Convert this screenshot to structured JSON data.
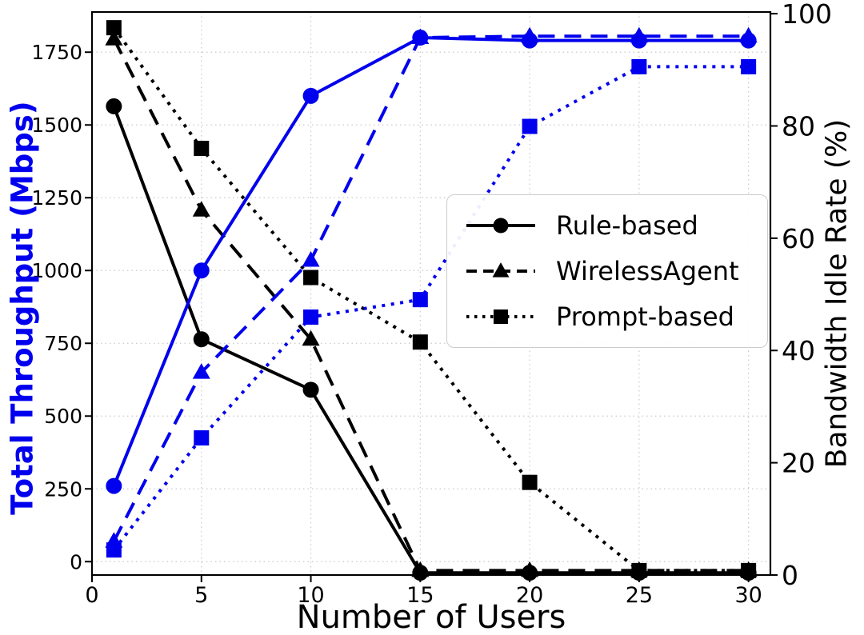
{
  "chart_data": {
    "type": "line",
    "title": "",
    "xlabel": "Number of Users",
    "ylabel_left": "Total Throughput (Mbps)",
    "ylabel_right": "Bandwidth Idle Rate (%)",
    "x": [
      1,
      5,
      10,
      15,
      20,
      25,
      30
    ],
    "x_ticks": [
      0,
      5,
      10,
      15,
      20,
      25,
      30
    ],
    "y_left_ticks": [
      0,
      250,
      500,
      750,
      1000,
      1250,
      1500,
      1750
    ],
    "y_right_ticks": [
      0,
      20,
      40,
      60,
      80,
      100
    ],
    "xlim": [
      0,
      31
    ],
    "ylim_left": [
      -46,
      1888
    ],
    "ylim_right": [
      0,
      100.3
    ],
    "grid": true,
    "colors": {
      "throughput": "#0000EE",
      "idle_rate": "#000000",
      "grid": "#c9c9c9"
    },
    "series": [
      {
        "name": "Rule-based",
        "metric": "Bandwidth Idle Rate (%)",
        "axis": "right",
        "color": "#000000",
        "line": "solid",
        "marker": "circle",
        "values": [
          83.5,
          42,
          33,
          0.4,
          0.4,
          0.4,
          0.4
        ]
      },
      {
        "name": "WirelessAgent",
        "metric": "Bandwidth Idle Rate (%)",
        "axis": "right",
        "color": "#000000",
        "line": "dashed",
        "marker": "triangle",
        "values": [
          95.5,
          65,
          42,
          0.8,
          0.8,
          0.8,
          0.8
        ]
      },
      {
        "name": "Prompt-based",
        "metric": "Bandwidth Idle Rate (%)",
        "axis": "right",
        "color": "#000000",
        "line": "dotted",
        "marker": "square",
        "values": [
          97.5,
          76,
          53,
          41.5,
          16.5,
          0.8,
          0.8
        ]
      },
      {
        "name": "Rule-based",
        "metric": "Total Throughput (Mbps)",
        "axis": "left",
        "color": "#0000EE",
        "line": "solid",
        "marker": "circle",
        "values": [
          260,
          1000,
          1600,
          1800,
          1790,
          1790,
          1790
        ]
      },
      {
        "name": "WirelessAgent",
        "metric": "Total Throughput (Mbps)",
        "axis": "left",
        "color": "#0000EE",
        "line": "dashed",
        "marker": "triangle",
        "values": [
          70,
          650,
          1035,
          1800,
          1805,
          1805,
          1805
        ]
      },
      {
        "name": "Prompt-based",
        "metric": "Total Throughput (Mbps)",
        "axis": "left",
        "color": "#0000EE",
        "line": "dotted",
        "marker": "square",
        "values": [
          40,
          425,
          840,
          900,
          1495,
          1700,
          1700
        ]
      }
    ],
    "legend": {
      "position": "center-right",
      "items": [
        {
          "label": "Rule-based",
          "line": "solid",
          "marker": "circle"
        },
        {
          "label": "WirelessAgent",
          "line": "dashed",
          "marker": "triangle"
        },
        {
          "label": "Prompt-based",
          "line": "dotted",
          "marker": "square"
        }
      ]
    }
  }
}
